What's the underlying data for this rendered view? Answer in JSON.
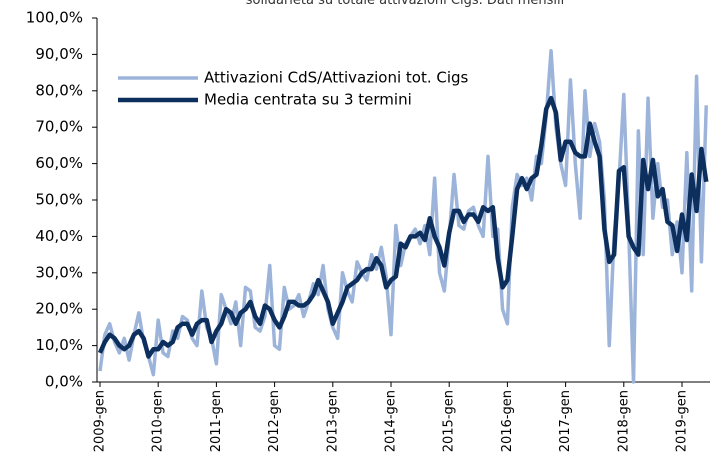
{
  "chart_data": {
    "type": "line",
    "title": "solidarietà su totale attivazioni Cigs. Dati mensili",
    "categories": [
      "2009-gen",
      null,
      null,
      null,
      null,
      null,
      null,
      null,
      null,
      null,
      null,
      null,
      "2010-gen",
      null,
      null,
      null,
      null,
      null,
      null,
      null,
      null,
      null,
      null,
      null,
      "2011-gen",
      null,
      null,
      null,
      null,
      null,
      null,
      null,
      null,
      null,
      null,
      null,
      "2012-gen",
      null,
      null,
      null,
      null,
      null,
      null,
      null,
      null,
      null,
      null,
      null,
      "2013-gen",
      null,
      null,
      null,
      null,
      null,
      null,
      null,
      null,
      null,
      null,
      null,
      "2014-gen",
      null,
      null,
      null,
      null,
      null,
      null,
      null,
      null,
      null,
      null,
      null,
      "2015-gen",
      null,
      null,
      null,
      null,
      null,
      null,
      null,
      null,
      null,
      null,
      null,
      "2016-gen",
      null,
      null,
      null,
      null,
      null,
      null,
      null,
      null,
      null,
      null,
      null,
      "2017-gen",
      null,
      null,
      null,
      null,
      null,
      null,
      null,
      null,
      null,
      null,
      null,
      "2018-gen",
      null,
      null,
      null,
      null,
      null,
      null,
      null,
      null,
      null,
      null,
      null,
      "2019-gen",
      null,
      null,
      null,
      null,
      null
    ],
    "series": [
      {
        "name": "Attivazioni CdS/Attivazioni tot. Cigs",
        "color": "#9db4da",
        "width": 3.5,
        "values": [
          3,
          13,
          16,
          11,
          8,
          12,
          6,
          13,
          19,
          11,
          7,
          2,
          17,
          8,
          7,
          14,
          12,
          18,
          17,
          12,
          10,
          25,
          15,
          12,
          5,
          24,
          20,
          16,
          22,
          10,
          26,
          25,
          15,
          14,
          18,
          32,
          10,
          9,
          26,
          20,
          21,
          24,
          18,
          22,
          27,
          24,
          32,
          20,
          15,
          12,
          30,
          25,
          22,
          33,
          30,
          28,
          35,
          31,
          37,
          29,
          13,
          43,
          32,
          38,
          40,
          42,
          38,
          43,
          35,
          56,
          30,
          25,
          40,
          57,
          43,
          42,
          47,
          48,
          43,
          40,
          62,
          40,
          42,
          20,
          16,
          48,
          57,
          54,
          56,
          50,
          62,
          60,
          73,
          91,
          70,
          60,
          54,
          83,
          60,
          45,
          80,
          62,
          71,
          66,
          50,
          10,
          40,
          55,
          79,
          42,
          0,
          69,
          35,
          78,
          45,
          60,
          48,
          50,
          35,
          44,
          30,
          63,
          25,
          84,
          33,
          76
        ]
      },
      {
        "name": "Media centrata su 3 termini",
        "color": "#0d2f5e",
        "width": 4.5,
        "values": [
          8,
          11,
          13,
          12,
          10,
          9,
          10,
          13,
          14,
          12,
          7,
          9,
          9,
          11,
          10,
          11,
          15,
          16,
          16,
          13,
          16,
          17,
          17,
          11,
          14,
          16,
          20,
          19,
          16,
          19,
          20,
          22,
          18,
          16,
          21,
          20,
          17,
          15,
          18,
          22,
          22,
          21,
          21,
          22,
          24,
          28,
          25,
          22,
          16,
          19,
          22,
          26,
          27,
          28,
          30,
          31,
          31,
          34,
          32,
          26,
          28,
          29,
          38,
          37,
          40,
          40,
          41,
          39,
          45,
          40,
          37,
          32,
          41,
          47,
          47,
          44,
          46,
          46,
          44,
          48,
          47,
          48,
          34,
          26,
          28,
          40,
          53,
          56,
          53,
          56,
          57,
          65,
          75,
          78,
          74,
          61,
          66,
          66,
          63,
          62,
          62,
          71,
          66,
          62,
          42,
          33,
          35,
          58,
          59,
          40,
          37,
          35,
          61,
          53,
          61,
          51,
          53,
          44,
          43,
          36,
          46,
          39,
          57,
          47,
          64,
          55
        ]
      }
    ],
    "ylim": [
      0,
      100
    ],
    "yticks": [
      {
        "value": 0,
        "label": "0,0%"
      },
      {
        "value": 10,
        "label": "10,0%"
      },
      {
        "value": 20,
        "label": "20,0%"
      },
      {
        "value": 30,
        "label": "30,0%"
      },
      {
        "value": 40,
        "label": "40,0%"
      },
      {
        "value": 50,
        "label": "50,0%"
      },
      {
        "value": 60,
        "label": "60,0%"
      },
      {
        "value": 70,
        "label": "70,0%"
      },
      {
        "value": 80,
        "label": "80,0%"
      },
      {
        "value": 90,
        "label": "90,0%"
      },
      {
        "value": 100,
        "label": "100,0%"
      }
    ],
    "grid": false,
    "legend": "top-left"
  }
}
